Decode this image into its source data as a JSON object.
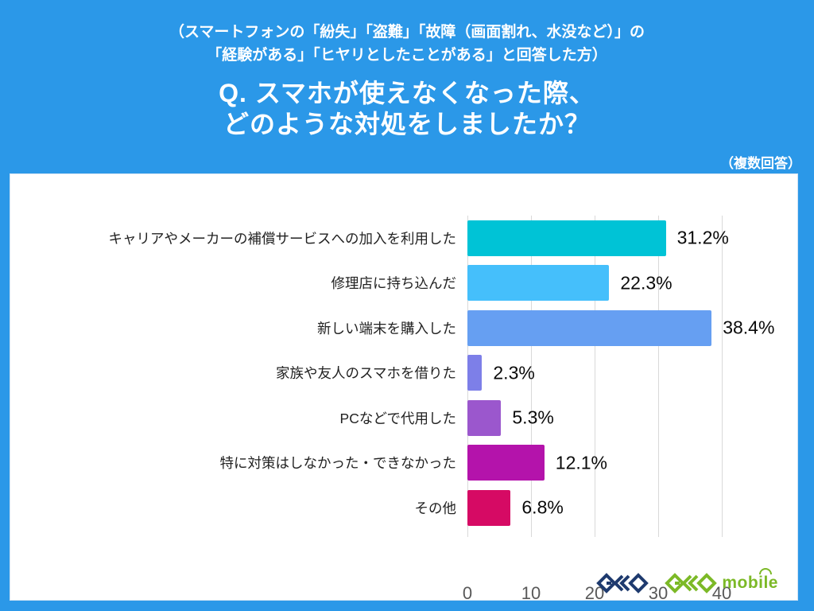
{
  "header": {
    "caption_line1": "（スマートフォンの「紛失」「盗難」「故障（画面割れ、水没など）」の",
    "caption_line2": "「経験がある」「ヒヤリとしたことがある」と回答した方）",
    "title_line1": "Q. スマホが使えなくなった際、",
    "title_line2": "どのような対処をしましたか？",
    "note": "（複数回答）"
  },
  "chart_data": {
    "type": "bar",
    "orientation": "horizontal",
    "categories": [
      "キャリアやメーカーの補償サービスへの加入を利用した",
      "修理店に持ち込んだ",
      "新しい端末を購入した",
      "家族や友人のスマホを借りた",
      "PCなどで代用した",
      "特に対策はしなかった・できなかった",
      "その他"
    ],
    "values": [
      31.2,
      22.3,
      38.4,
      2.3,
      5.3,
      12.1,
      6.8
    ],
    "value_labels": [
      "31.2%",
      "22.3%",
      "38.4%",
      "2.3%",
      "5.3%",
      "12.1%",
      "6.8%"
    ],
    "bar_colors": [
      "#00C3D6",
      "#45BFFB",
      "#669FF2",
      "#7D7FE8",
      "#9B57CD",
      "#B413AB",
      "#D60A64"
    ],
    "x_ticks": [
      0,
      10,
      20,
      30,
      40
    ],
    "xlim": [
      0,
      50
    ],
    "grid": true,
    "grid_color": "#d9d9d9",
    "background": "#ffffff"
  },
  "page_colors": {
    "page_background": "#2B98E8",
    "header_text": "#ffffff",
    "geo_logo_navy": "#1E3A6E",
    "geo_logo_green": "#7CB927"
  },
  "footer": {
    "logo_geo": "GEO",
    "logo_geo_mobile": "GEO mobile",
    "logo_mobile_text": "mobile"
  }
}
